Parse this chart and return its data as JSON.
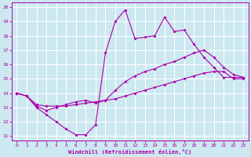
{
  "title": "",
  "xlabel": "Windchill (Refroidissement éolien,°C)",
  "ylabel": "",
  "xlim": [
    -0.5,
    23.5
  ],
  "ylim": [
    10.7,
    20.3
  ],
  "yticks": [
    11,
    12,
    13,
    14,
    15,
    16,
    17,
    18,
    19,
    20
  ],
  "xticks": [
    0,
    1,
    2,
    3,
    4,
    5,
    6,
    7,
    8,
    9,
    10,
    11,
    12,
    13,
    14,
    15,
    16,
    17,
    18,
    19,
    20,
    21,
    22,
    23
  ],
  "line_color": "#aa00aa",
  "bg_color": "#cce8f0",
  "grid_color": "#ffffff",
  "curve1_x": [
    0,
    1,
    2,
    3,
    4,
    5,
    6,
    7,
    8,
    9,
    10,
    11,
    12,
    13,
    14,
    15,
    16,
    17,
    18,
    19,
    20,
    21,
    22,
    23
  ],
  "curve1_y": [
    14.0,
    13.8,
    13.0,
    12.5,
    12.0,
    11.5,
    11.1,
    11.1,
    11.8,
    16.8,
    19.0,
    19.8,
    17.8,
    17.9,
    18.0,
    19.3,
    18.3,
    18.4,
    17.4,
    16.5,
    15.8,
    15.1,
    15.1,
    15.1
  ],
  "curve2_x": [
    0,
    1,
    2,
    3,
    4,
    5,
    6,
    7,
    8,
    9,
    10,
    11,
    12,
    13,
    14,
    15,
    16,
    17,
    18,
    19,
    20,
    21,
    22,
    23
  ],
  "curve2_y": [
    14.0,
    13.8,
    13.1,
    12.8,
    13.0,
    13.2,
    13.4,
    13.5,
    13.3,
    13.5,
    14.2,
    14.8,
    15.2,
    15.5,
    15.7,
    16.0,
    16.2,
    16.5,
    16.8,
    17.0,
    16.5,
    15.8,
    15.3,
    15.1
  ],
  "curve3_x": [
    0,
    1,
    2,
    3,
    4,
    5,
    6,
    7,
    8,
    9,
    10,
    11,
    12,
    13,
    14,
    15,
    16,
    17,
    18,
    19,
    20,
    21,
    22,
    23
  ],
  "curve3_y": [
    14.0,
    13.8,
    13.2,
    13.1,
    13.1,
    13.1,
    13.2,
    13.3,
    13.4,
    13.5,
    13.6,
    13.8,
    14.0,
    14.2,
    14.4,
    14.6,
    14.8,
    15.0,
    15.2,
    15.4,
    15.5,
    15.5,
    15.0,
    15.0
  ]
}
